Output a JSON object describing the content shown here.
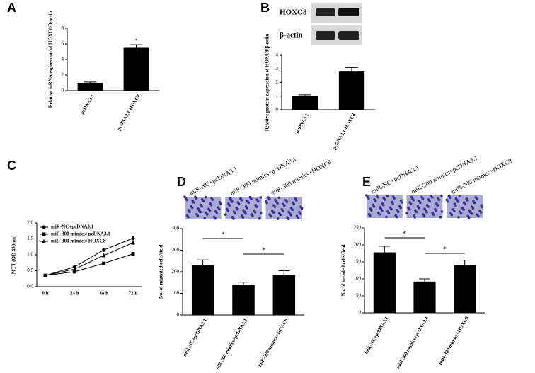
{
  "chart_data": [
    {
      "type": "bar",
      "panel": "A",
      "ylabel": "Relative mRNA expression of HOXC8/β-actin",
      "categories": [
        "pcDNA3.1",
        "pcDNA3.1-HOXC8"
      ],
      "values": [
        1,
        5.5
      ],
      "errors": [
        0.1,
        0.4
      ],
      "color": "#000000",
      "ylim": [
        0,
        8
      ],
      "yticks": [
        0,
        2,
        4,
        6,
        8
      ],
      "annotations": [
        "*"
      ]
    },
    {
      "type": "bar",
      "panel": "B",
      "blot_labels": [
        "HOXC8",
        "β-actin"
      ],
      "ylabel": "Relative protein expression of HOXC8/β-actin",
      "categories": [
        "pcDNA3.1",
        "pcDNA3.1-HOXC8"
      ],
      "values": [
        1,
        2.8
      ],
      "errors": [
        0.1,
        0.3
      ],
      "color": "#000000",
      "ylim": [
        0,
        4
      ],
      "yticks": [
        0,
        1,
        2,
        3,
        4
      ]
    },
    {
      "type": "line",
      "panel": "C",
      "ylabel": "MTT (OD 490nm)",
      "categories": [
        "0 h",
        "24 h",
        "48 h",
        "72 h"
      ],
      "series": [
        {
          "name": "miR-NC+pcDNA3.1",
          "color": "#000000",
          "marker": "circle",
          "values": [
            0.35,
            0.62,
            1.15,
            1.52
          ],
          "errors": [
            0.02,
            0.05,
            0.06,
            0.08
          ]
        },
        {
          "name": "miR-300 mimics+pcDNA3.1",
          "color": "#000000",
          "marker": "square",
          "values": [
            0.35,
            0.47,
            0.73,
            1.03
          ],
          "errors": [
            0.02,
            0.03,
            0.04,
            0.06
          ]
        },
        {
          "name": "miR-300 mimics+HOXC8",
          "color": "#000000",
          "marker": "triangle",
          "values": [
            0.35,
            0.55,
            0.98,
            1.38
          ],
          "errors": [
            0.02,
            0.04,
            0.06,
            0.07
          ]
        }
      ],
      "ylim": [
        0,
        2
      ],
      "yticks": [
        {
          "value": 0,
          "label": "0.0"
        },
        0.5,
        {
          "value": 1,
          "label": "1.0"
        },
        1.5,
        {
          "value": 2,
          "label": "2.0"
        }
      ]
    },
    {
      "type": "bar",
      "panel": "D",
      "ylabel": "No. of migrated cells/field",
      "categories": [
        "miR-NC+pcDNA3.1",
        "miR-300 mimics+pcDNA3.1",
        "miR-300 mimics+HOXC8"
      ],
      "values": [
        230,
        140,
        185
      ],
      "errors": [
        25,
        12,
        20
      ],
      "color": "#000000",
      "ylim": [
        0,
        400
      ],
      "yticks": [
        0,
        100,
        200,
        300,
        400
      ],
      "annotations": [
        "*",
        "*"
      ]
    },
    {
      "type": "bar",
      "panel": "E",
      "ylabel": "No. of invaded cells/field",
      "categories": [
        "miR-NC+pcDNA3.1",
        "miR-300 mimics+pcDNA3.1",
        "miR-300 mimics+HOXC8"
      ],
      "values": [
        178,
        92,
        140
      ],
      "errors": [
        18,
        8,
        15
      ],
      "color": "#000000",
      "ylim": [
        0,
        250
      ],
      "yticks": [
        0,
        50,
        100,
        150,
        200,
        250
      ],
      "annotations": [
        "*",
        "*"
      ]
    }
  ]
}
